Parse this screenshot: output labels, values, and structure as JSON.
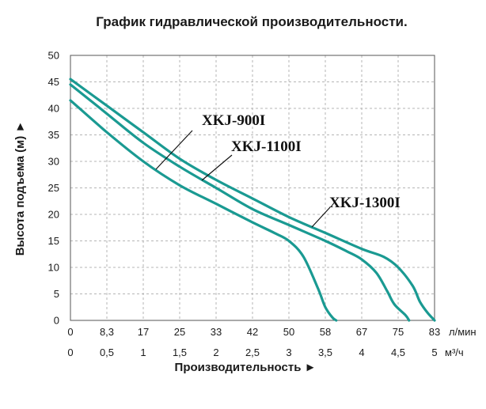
{
  "chart_data": {
    "type": "line",
    "title": "График гидравлической производительности.",
    "xlabel": "Производительность ►",
    "ylabel": "Высота подъема (м) ►",
    "x_unit_primary": "л/мин",
    "x_unit_secondary": "м³/ч",
    "x_ticks_primary": [
      "0",
      "8,3",
      "17",
      "25",
      "33",
      "42",
      "50",
      "58",
      "67",
      "75",
      "83"
    ],
    "x_ticks_secondary": [
      "0",
      "0,5",
      "1",
      "1,5",
      "2",
      "2,5",
      "3",
      "3,5",
      "4",
      "4,5",
      "5"
    ],
    "y_ticks": [
      "0",
      "5",
      "10",
      "15",
      "20",
      "25",
      "30",
      "35",
      "40",
      "45",
      "50"
    ],
    "xlim": [
      0,
      5
    ],
    "ylim": [
      0,
      50
    ],
    "grid": true,
    "line_color": "#1a9a92",
    "series": [
      {
        "name": "XKJ-900I",
        "x": [
          0,
          0.5,
          1,
          1.5,
          2,
          2.5,
          2.8,
          3.0,
          3.2,
          3.4,
          3.5,
          3.6,
          3.65
        ],
        "y": [
          41.5,
          35.5,
          30,
          25.5,
          22,
          18.5,
          16.5,
          15,
          12,
          6,
          2.5,
          0.5,
          0
        ]
      },
      {
        "name": "XKJ-1100I",
        "x": [
          0,
          0.5,
          1,
          1.5,
          2,
          2.5,
          3,
          3.5,
          3.8,
          4.0,
          4.2,
          4.35,
          4.45,
          4.6,
          4.65
        ],
        "y": [
          44.5,
          39,
          33.5,
          29,
          25,
          21,
          18,
          15,
          13,
          11.5,
          9,
          5.5,
          3,
          1,
          0
        ]
      },
      {
        "name": "XKJ-1300I",
        "x": [
          0,
          0.5,
          1,
          1.5,
          2,
          2.5,
          3,
          3.5,
          4,
          4.3,
          4.5,
          4.7,
          4.8,
          4.9,
          5.0
        ],
        "y": [
          45.5,
          40.5,
          35.5,
          30.5,
          26.5,
          23,
          19.5,
          16.5,
          13.5,
          12,
          10,
          6.5,
          3.5,
          1.5,
          0
        ]
      }
    ],
    "annotations": [
      {
        "text": "XKJ-900I",
        "series": "XKJ-900I"
      },
      {
        "text": "XKJ-1100I",
        "series": "XKJ-1100I"
      },
      {
        "text": "XKJ-1300I",
        "series": "XKJ-1300I"
      }
    ]
  }
}
